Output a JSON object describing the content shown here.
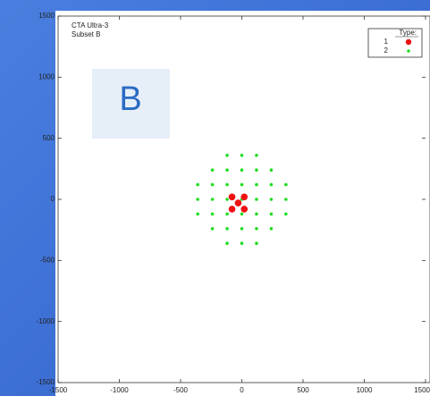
{
  "chart_data": {
    "type": "scatter",
    "annotations": [
      "CTA Ultra-3",
      "Subset B"
    ],
    "badge": "B",
    "legend_title": "Type:",
    "legend": "upper right",
    "series": [
      {
        "name": "2",
        "color": "#22dd22",
        "x": [
          -120,
          0,
          120,
          -240,
          -120,
          0,
          120,
          240,
          -360,
          -240,
          -120,
          0,
          120,
          240,
          360,
          -360,
          -240,
          -120,
          0,
          120,
          240,
          360,
          -360,
          -240,
          -120,
          0,
          120,
          240,
          360,
          -240,
          -120,
          0,
          120,
          240,
          -120,
          0,
          120
        ],
        "values": [
          360,
          360,
          360,
          240,
          240,
          240,
          240,
          240,
          120,
          120,
          120,
          120,
          120,
          120,
          120,
          0,
          0,
          0,
          0,
          0,
          0,
          0,
          -120,
          -120,
          -120,
          -120,
          -120,
          -120,
          -120,
          -240,
          -240,
          -240,
          -240,
          -240,
          -360,
          -360,
          -360
        ]
      },
      {
        "name": "1",
        "color": "#ee1111",
        "x": [
          -80,
          20,
          -30,
          -80,
          20
        ],
        "values": [
          20,
          20,
          -30,
          -80,
          -80
        ]
      }
    ],
    "xlim": [
      -1500,
      1500
    ],
    "ylim": [
      -1500,
      1500
    ],
    "xticks": [
      -1500,
      -1000,
      -500,
      0,
      500,
      1000,
      1500
    ],
    "yticks": [
      -1500,
      -1000,
      -500,
      0,
      500,
      1000,
      1500
    ]
  }
}
